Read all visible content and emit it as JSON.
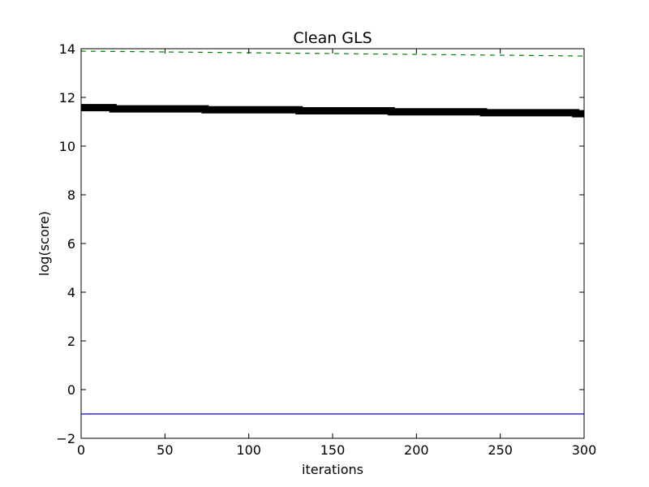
{
  "chart_data": {
    "type": "line",
    "title": "Clean GLS",
    "xlabel": "iterations",
    "ylabel": "log(score)",
    "xlim": [
      0,
      300
    ],
    "ylim": [
      -2,
      14
    ],
    "xticks": [
      0,
      50,
      100,
      150,
      200,
      250,
      300
    ],
    "yticks": [
      -2,
      0,
      2,
      4,
      6,
      8,
      10,
      12,
      14
    ],
    "xtick_labels": [
      "0",
      "50",
      "100",
      "150",
      "200",
      "250",
      "300"
    ],
    "ytick_labels": [
      "−2",
      "0",
      "2",
      "4",
      "6",
      "8",
      "10",
      "12",
      "14"
    ],
    "grid": false,
    "legend": "none",
    "series": [
      {
        "style": "dashed",
        "color": "#008000",
        "x": [
          0,
          300
        ],
        "y": [
          13.9,
          13.7
        ]
      },
      {
        "style": "thick-step",
        "color": "#000000",
        "x": [
          0,
          19,
          19,
          74,
          74,
          130,
          130,
          185,
          185,
          240,
          240,
          295,
          295,
          300
        ],
        "y": [
          11.58,
          11.58,
          11.53,
          11.53,
          11.49,
          11.49,
          11.45,
          11.45,
          11.41,
          11.41,
          11.37,
          11.37,
          11.33,
          11.33
        ]
      },
      {
        "style": "solid",
        "color": "#0000ff",
        "x": [
          0,
          300
        ],
        "y": [
          -1.0,
          -1.0
        ]
      }
    ]
  }
}
